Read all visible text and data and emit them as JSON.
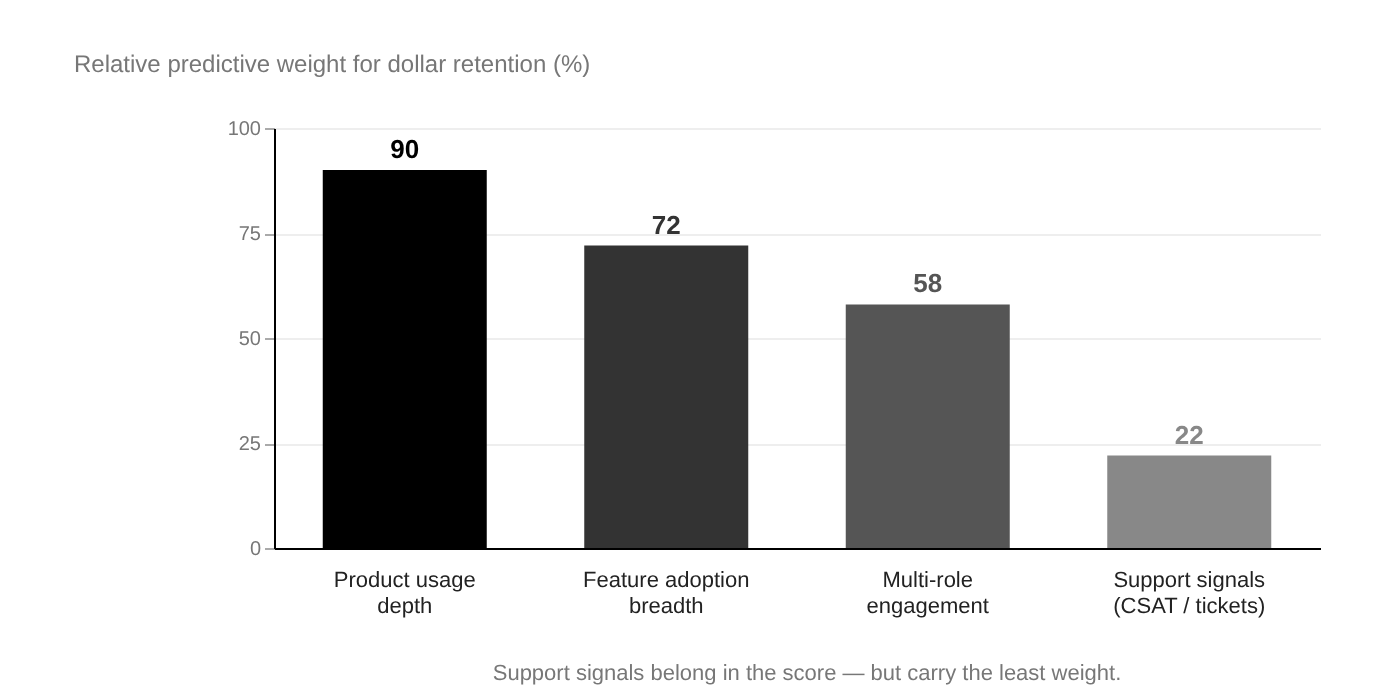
{
  "chart_data": {
    "type": "bar",
    "title": "Relative predictive weight for dollar retention (%)",
    "categories": [
      "Product usage depth",
      "Feature adoption breadth",
      "Multi-role engagement",
      "Support signals (CSAT / tickets)"
    ],
    "values": [
      90,
      72,
      58,
      22
    ],
    "colors": [
      "#000000",
      "#333333",
      "#555555",
      "#888888"
    ],
    "ylim": [
      0,
      100
    ],
    "yticks": [
      0,
      25,
      50,
      75,
      100
    ],
    "grid": "y",
    "data_labels": true,
    "annotations": [
      "Support signals belong in the score — but carry the least weight."
    ]
  }
}
